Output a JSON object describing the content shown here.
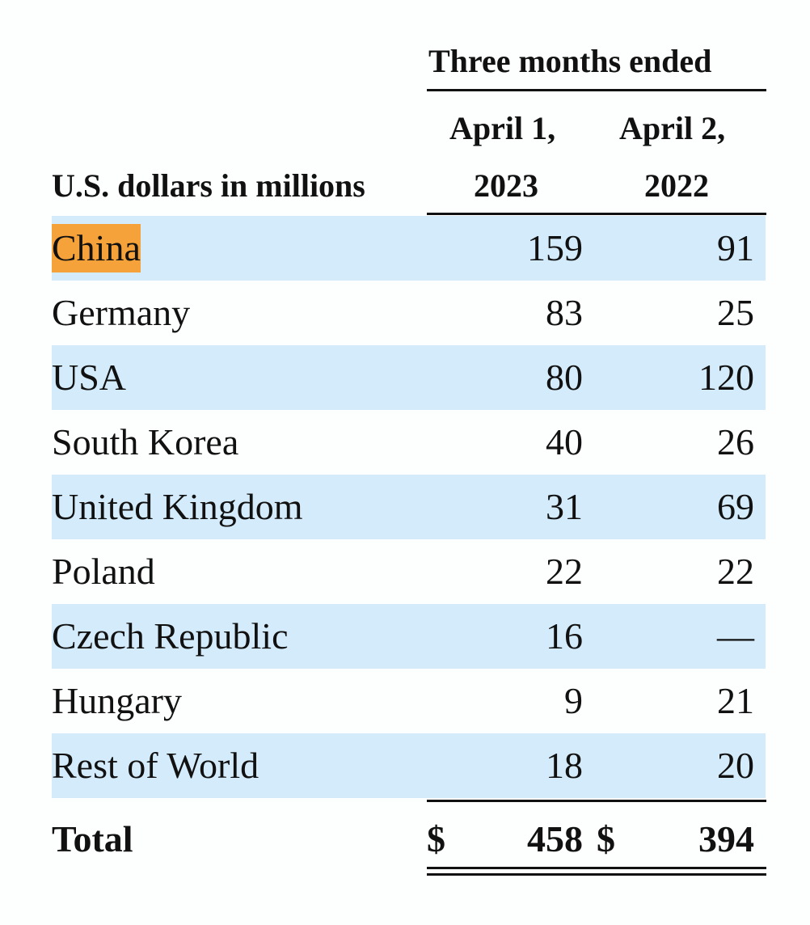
{
  "header": {
    "period_title": "Three months ended",
    "col1_line1": "April 1,",
    "col1_line2": "2023",
    "col2_line1": "April 2,",
    "col2_line2": "2022",
    "row_label_header": "U.S. dollars in millions"
  },
  "rows": [
    {
      "country": "China",
      "v2023": "159",
      "v2022": "91"
    },
    {
      "country": "Germany",
      "v2023": "83",
      "v2022": "25"
    },
    {
      "country": "USA",
      "v2023": "80",
      "v2022": "120"
    },
    {
      "country": "South Korea",
      "v2023": "40",
      "v2022": "26"
    },
    {
      "country": "United Kingdom",
      "v2023": "31",
      "v2022": "69"
    },
    {
      "country": "Poland",
      "v2023": "22",
      "v2022": "22"
    },
    {
      "country": "Czech Republic",
      "v2023": "16",
      "v2022": "—"
    },
    {
      "country": "Hungary",
      "v2023": "9",
      "v2022": "21"
    },
    {
      "country": "Rest of World",
      "v2023": "18",
      "v2022": "20"
    }
  ],
  "total": {
    "label": "Total",
    "currency1": "$",
    "v2023": "458",
    "currency2": "$",
    "v2022": "394"
  },
  "colors": {
    "highlight": "#f5a23a",
    "row_shade": "#d3ebfa"
  }
}
